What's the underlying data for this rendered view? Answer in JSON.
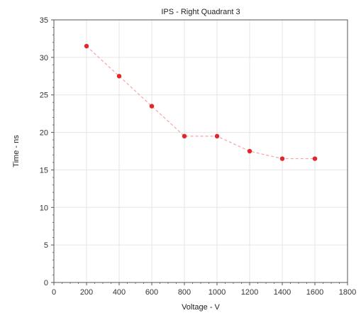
{
  "chart_data": {
    "type": "line",
    "title": "IPS - Right Quadrant 3",
    "xlabel": "Voltage - V",
    "ylabel": "Time - ns",
    "xlim": [
      0,
      1800
    ],
    "ylim": [
      0,
      35
    ],
    "xticks": [
      0,
      200,
      400,
      600,
      800,
      1000,
      1200,
      1400,
      1600,
      1800
    ],
    "yticks": [
      0,
      5,
      10,
      15,
      20,
      25,
      30,
      35
    ],
    "grid": true,
    "legend": "none",
    "series": [
      {
        "color": "#e3262b",
        "line_color": "#f4a6a6",
        "line_style": "dashed",
        "x": [
          200,
          400,
          600,
          800,
          1000,
          1200,
          1400,
          1600
        ],
        "y": [
          31.5,
          27.5,
          23.5,
          19.5,
          19.5,
          17.5,
          16.5,
          16.5
        ]
      }
    ]
  }
}
